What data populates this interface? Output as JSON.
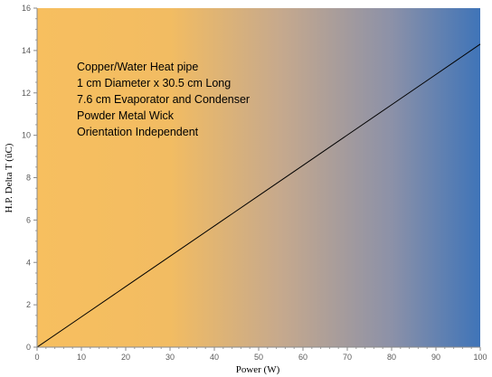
{
  "chart_data": {
    "type": "line",
    "title": "",
    "xlabel": "Power (W)",
    "ylabel": "H.P. Delta T (ûC)",
    "xlim": [
      0,
      100
    ],
    "ylim": [
      0,
      16
    ],
    "x_ticks": [
      "0",
      "10",
      "20",
      "30",
      "40",
      "50",
      "60",
      "70",
      "80",
      "90",
      "100"
    ],
    "y_ticks": [
      "0",
      "2",
      "4",
      "6",
      "8",
      "10",
      "12",
      "14",
      "16"
    ],
    "series": [
      {
        "color": "#000000",
        "x": [
          0,
          10,
          20,
          30,
          40,
          50,
          60,
          70,
          80,
          90,
          100
        ],
        "y": [
          0,
          1.43,
          2.86,
          4.29,
          5.72,
          7.15,
          8.58,
          10.01,
          11.44,
          12.87,
          14.3
        ]
      }
    ],
    "annotations": [
      "Copper/Water Heat pipe",
      "1 cm Diameter x 30.5 cm Long",
      "7.6 cm Evaporator and Condenser",
      "Powder Metal Wick",
      "Orientation Independent"
    ],
    "background_gradient": [
      "#f7bf5f",
      "#f2bc62",
      "#c6a98d",
      "#8c91a8",
      "#3f74b8"
    ],
    "grid": false,
    "legend": "none"
  }
}
